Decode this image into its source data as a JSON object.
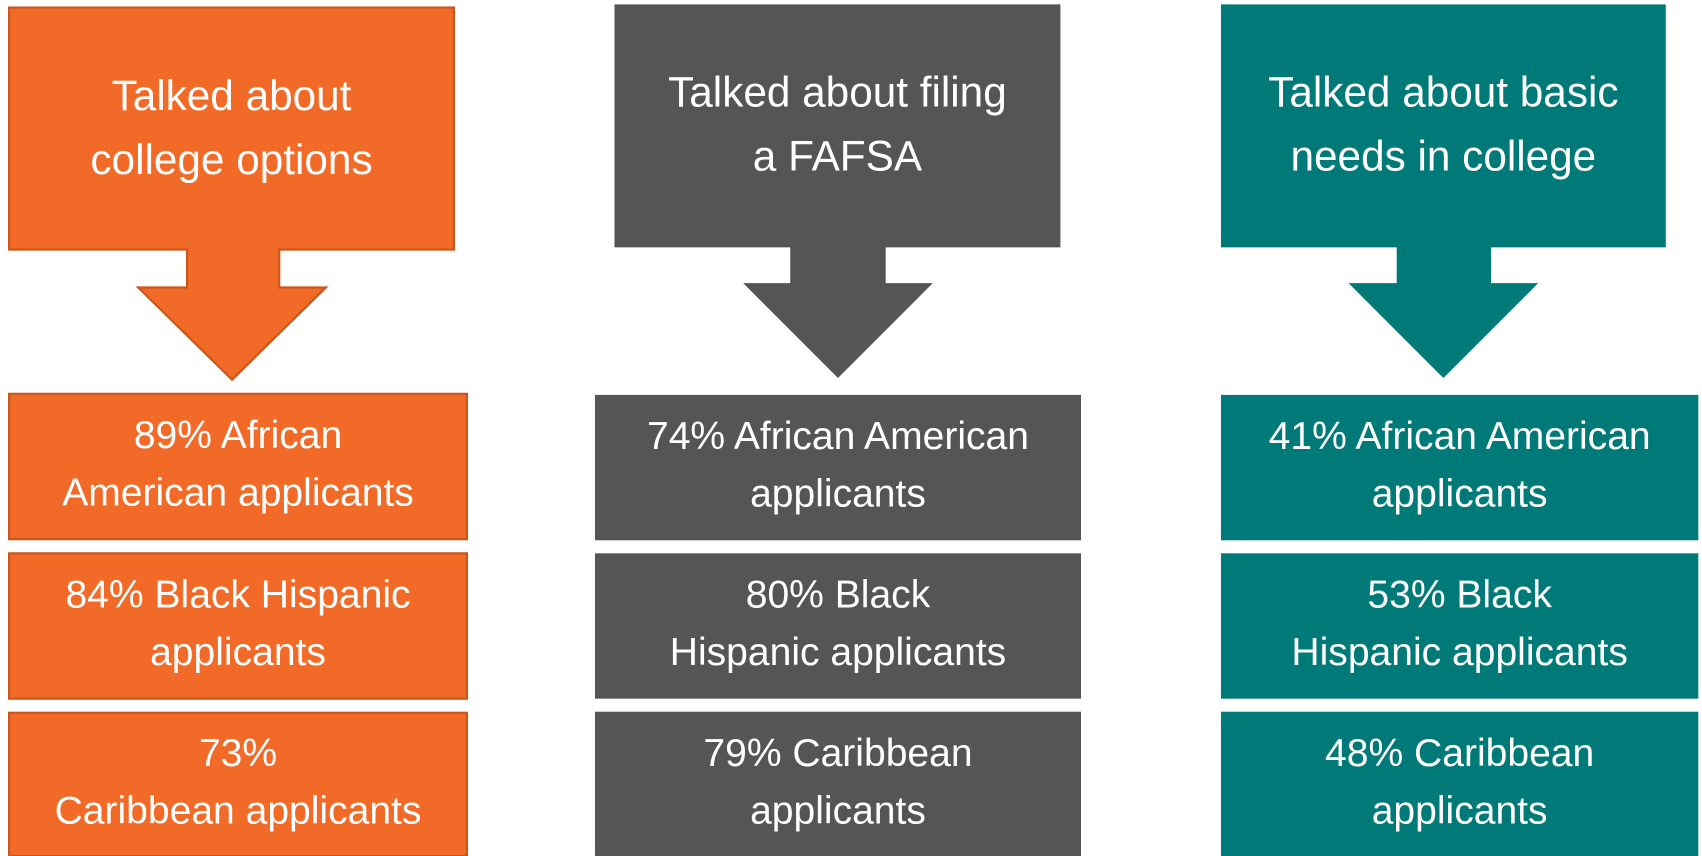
{
  "columns": [
    {
      "title_lines": [
        "Talked about",
        "college options"
      ],
      "items": [
        [
          "89% African",
          "American applicants"
        ],
        [
          "84% Black Hispanic",
          "applicants"
        ],
        [
          "73%",
          "Caribbean applicants"
        ]
      ]
    },
    {
      "title_lines": [
        "Talked about filing",
        "a FAFSA"
      ],
      "items": [
        [
          "74% African American",
          "applicants"
        ],
        [
          "80% Black",
          "Hispanic applicants"
        ],
        [
          "79% Caribbean",
          "applicants"
        ]
      ]
    },
    {
      "title_lines": [
        "Talked about basic",
        "needs in college"
      ],
      "items": [
        [
          "41% African American",
          "applicants"
        ],
        [
          "53% Black",
          "Hispanic applicants"
        ],
        [
          "48% Caribbean",
          "applicants"
        ]
      ]
    }
  ]
}
